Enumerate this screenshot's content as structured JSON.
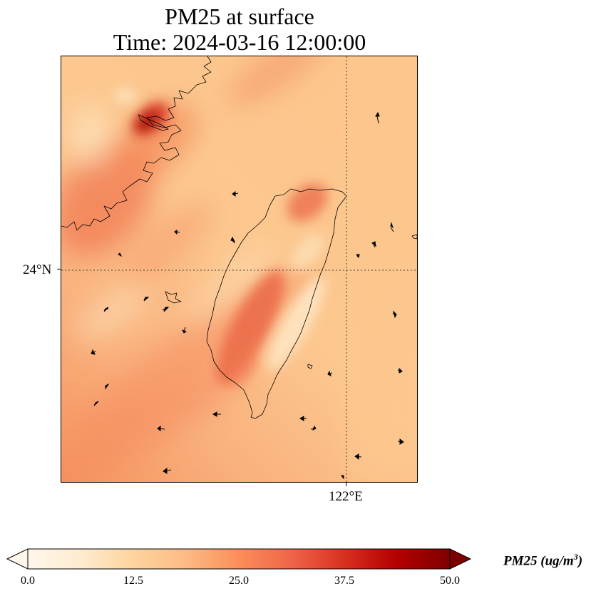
{
  "title": {
    "line1": "PM25 at surface",
    "line2": "Time: 2024-03-16 12:00:00"
  },
  "map": {
    "gridlines": {
      "lat_label": "24°N",
      "lon_label": "122°E"
    },
    "colormap": "OrRd",
    "features": [
      "Taiwan coastline",
      "Fujian coastline",
      "wind vectors"
    ]
  },
  "colorbar": {
    "ticks": [
      "0.0",
      "12.5",
      "25.0",
      "37.5",
      "50.0"
    ],
    "label_text": "PM25 (ug/m",
    "label_sup": "3",
    "label_close": ")",
    "range": [
      0,
      50
    ],
    "extend": "both",
    "colors": [
      "#fff7ec",
      "#fdd49e",
      "#fc8d59",
      "#d7301f",
      "#7f0000"
    ]
  }
}
